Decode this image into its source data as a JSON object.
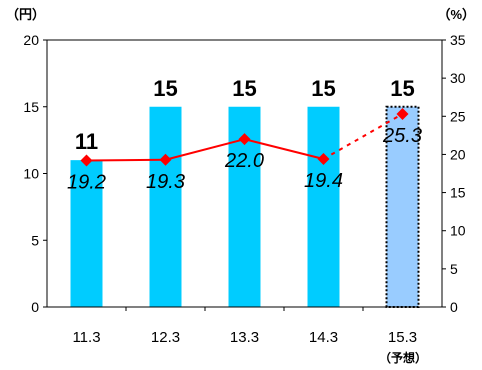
{
  "chart_data": {
    "type": "bar",
    "categories": [
      "11.3",
      "12.3",
      "13.3",
      "14.3",
      "15.3"
    ],
    "forecast_note": "（予想）",
    "y_left": {
      "label": "（円）",
      "range": [
        0,
        20
      ],
      "ticks": [
        0,
        5,
        10,
        15,
        20
      ]
    },
    "y_right": {
      "label": "（%）",
      "range": [
        0,
        35
      ],
      "ticks": [
        0,
        5,
        10,
        15,
        20,
        25,
        30,
        35
      ]
    },
    "series": [
      {
        "type": "bar",
        "axis": "left",
        "values": [
          11,
          15,
          15,
          15,
          15
        ],
        "labels": [
          "11",
          "15",
          "15",
          "15",
          "15"
        ],
        "forecast_from_index": 4,
        "color": "#00CCFF",
        "forecast_color": "#99CCFF"
      },
      {
        "type": "line",
        "axis": "right",
        "values": [
          19.2,
          19.3,
          22.0,
          19.4,
          25.3
        ],
        "labels": [
          "19.2",
          "19.3",
          "22.0",
          "19.4",
          "25.3"
        ],
        "forecast_from_index": 4,
        "color": "#FF0000"
      }
    ],
    "grid": false
  }
}
